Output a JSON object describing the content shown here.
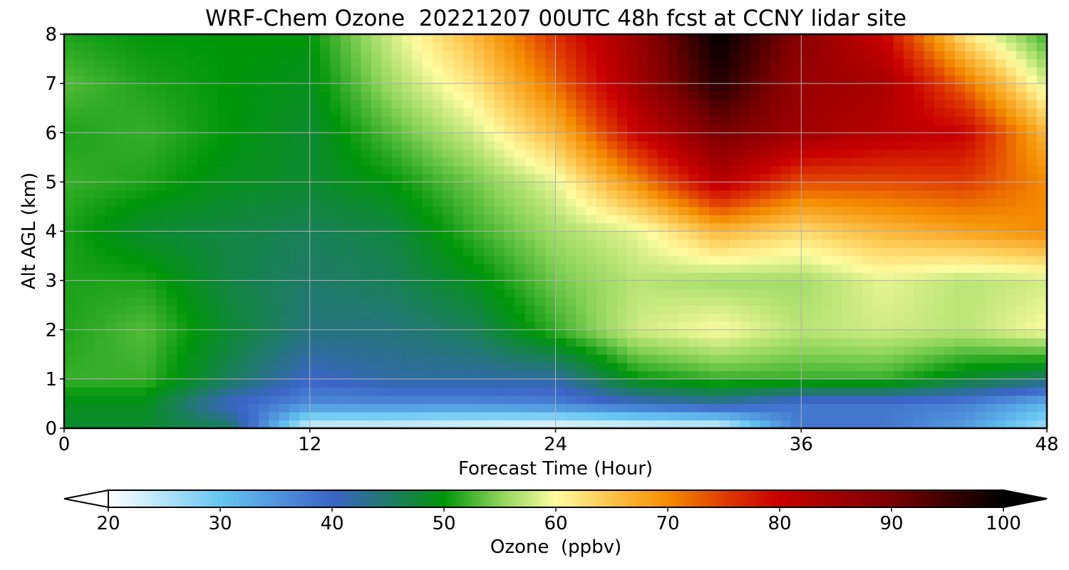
{
  "chart_data": {
    "type": "heatmap",
    "title": "WRF-Chem Ozone  20221207 00UTC 48h fcst at CCNY lidar site",
    "xlabel": "Forecast Time (Hour)",
    "ylabel": "Alt AGL (km)",
    "xlim": [
      0,
      48
    ],
    "ylim": [
      0,
      8
    ],
    "xticks": [
      "0",
      "12",
      "24",
      "36",
      "48"
    ],
    "yticks": [
      "0",
      "1",
      "2",
      "3",
      "4",
      "5",
      "6",
      "7",
      "8"
    ],
    "grid": true,
    "colorbar": {
      "label": "Ozone  (ppbv)",
      "range": [
        20,
        100
      ],
      "ticks": [
        "20",
        "30",
        "40",
        "50",
        "60",
        "70",
        "80",
        "90",
        "100"
      ],
      "extend": "both",
      "stops": [
        {
          "value": 20,
          "color": "#ffffff"
        },
        {
          "value": 30,
          "color": "#66c6f2"
        },
        {
          "value": 40,
          "color": "#3b64c8"
        },
        {
          "value": 45,
          "color": "#1f7a6a"
        },
        {
          "value": 50,
          "color": "#00960a"
        },
        {
          "value": 55,
          "color": "#8cd45a"
        },
        {
          "value": 60,
          "color": "#fefca0"
        },
        {
          "value": 65,
          "color": "#fdc24a"
        },
        {
          "value": 70,
          "color": "#f48c00"
        },
        {
          "value": 75,
          "color": "#e03c00"
        },
        {
          "value": 80,
          "color": "#c80000"
        },
        {
          "value": 90,
          "color": "#7a0000"
        },
        {
          "value": 100,
          "color": "#000000"
        }
      ]
    },
    "x": [
      0,
      4,
      8,
      12,
      16,
      20,
      24,
      28,
      32,
      36,
      40,
      44,
      48
    ],
    "y": [
      0,
      0.5,
      1,
      2,
      3,
      4,
      5,
      6,
      7,
      8
    ],
    "z": [
      [
        48,
        48,
        46,
        22,
        22,
        21,
        20,
        21,
        22,
        38,
        38,
        34,
        26
      ],
      [
        49,
        49,
        40,
        36,
        36,
        36,
        37,
        40,
        42,
        38,
        38,
        37,
        32
      ],
      [
        52,
        52,
        46,
        40,
        42,
        42,
        42,
        50,
        52,
        52,
        52,
        48,
        45
      ],
      [
        51,
        53,
        48,
        44,
        44,
        46,
        52,
        58,
        60,
        57,
        58,
        57,
        60
      ],
      [
        51,
        51,
        47,
        45,
        46,
        49,
        54,
        57,
        56,
        56,
        59,
        57,
        58
      ],
      [
        51,
        48,
        47,
        46,
        47,
        52,
        56,
        59,
        66,
        63,
        66,
        68,
        70
      ],
      [
        52,
        51,
        49,
        48,
        50,
        54,
        59,
        70,
        82,
        74,
        74,
        75,
        70
      ],
      [
        51,
        52,
        50,
        48,
        53,
        58,
        66,
        80,
        90,
        85,
        82,
        80,
        66
      ],
      [
        53,
        51,
        50,
        49,
        56,
        62,
        72,
        85,
        97,
        86,
        84,
        72,
        58
      ],
      [
        51,
        50,
        50,
        50,
        58,
        66,
        76,
        86,
        100,
        88,
        80,
        62,
        52
      ]
    ]
  }
}
